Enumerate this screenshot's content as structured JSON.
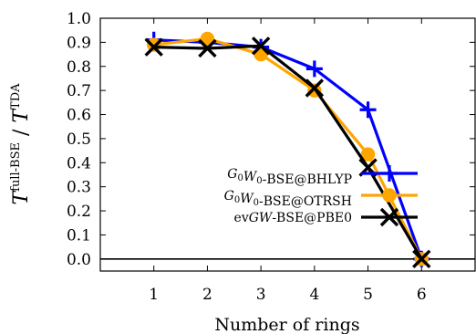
{
  "chart_data": {
    "type": "line",
    "title": "",
    "xlabel": "Number of rings",
    "ylabel_main": "T",
    "ylabel_sup_num": "full-BSE",
    "ylabel_slash": " / ",
    "ylabel_sup_den": "TDA",
    "xlim": [
      0,
      7
    ],
    "ylim": [
      -0.05,
      1.0
    ],
    "xticks": [
      1,
      2,
      3,
      4,
      5,
      6
    ],
    "xtick_labels": [
      "1",
      "2",
      "3",
      "4",
      "5",
      "6"
    ],
    "yticks": [
      0.0,
      0.1,
      0.2,
      0.3,
      0.4,
      0.5,
      0.6,
      0.7,
      0.8,
      0.9,
      1.0
    ],
    "ytick_labels": [
      "0.0",
      "0.1",
      "0.2",
      "0.3",
      "0.4",
      "0.5",
      "0.6",
      "0.7",
      "0.8",
      "0.9",
      "1.0"
    ],
    "hline_y": 0.0,
    "legend_position": "center-right",
    "grid": false,
    "x": [
      1,
      2,
      3,
      4,
      5,
      6
    ],
    "series": [
      {
        "name": "G0W0-BSE@BHLYP",
        "legend_parts": [
          {
            "text": "G",
            "style": "italic"
          },
          {
            "text": "0",
            "style": "sub"
          },
          {
            "text": "W",
            "style": "italic"
          },
          {
            "text": "0",
            "style": "sub"
          },
          {
            "text": "-BSE@BHLYP",
            "style": "normal"
          }
        ],
        "color": "#0000ff",
        "marker": "plus",
        "values": [
          0.91,
          0.9,
          0.88,
          0.79,
          0.62,
          0.0
        ]
      },
      {
        "name": "G0W0-BSE@OTRSH",
        "legend_parts": [
          {
            "text": "G",
            "style": "italic"
          },
          {
            "text": "0",
            "style": "sub"
          },
          {
            "text": "W",
            "style": "italic"
          },
          {
            "text": "0",
            "style": "sub"
          },
          {
            "text": "-BSE@OTRSH",
            "style": "normal"
          }
        ],
        "color": "#ffa500",
        "marker": "circle",
        "values": [
          0.89,
          0.915,
          0.85,
          0.7,
          0.435,
          0.0
        ]
      },
      {
        "name": "evGW-BSE@PBE0",
        "legend_parts": [
          {
            "text": "ev",
            "style": "normal"
          },
          {
            "text": "GW",
            "style": "italic"
          },
          {
            "text": "-BSE@PBE0",
            "style": "normal"
          }
        ],
        "color": "#000000",
        "marker": "x",
        "values": [
          0.88,
          0.875,
          0.885,
          0.71,
          0.38,
          0.0
        ]
      }
    ]
  }
}
